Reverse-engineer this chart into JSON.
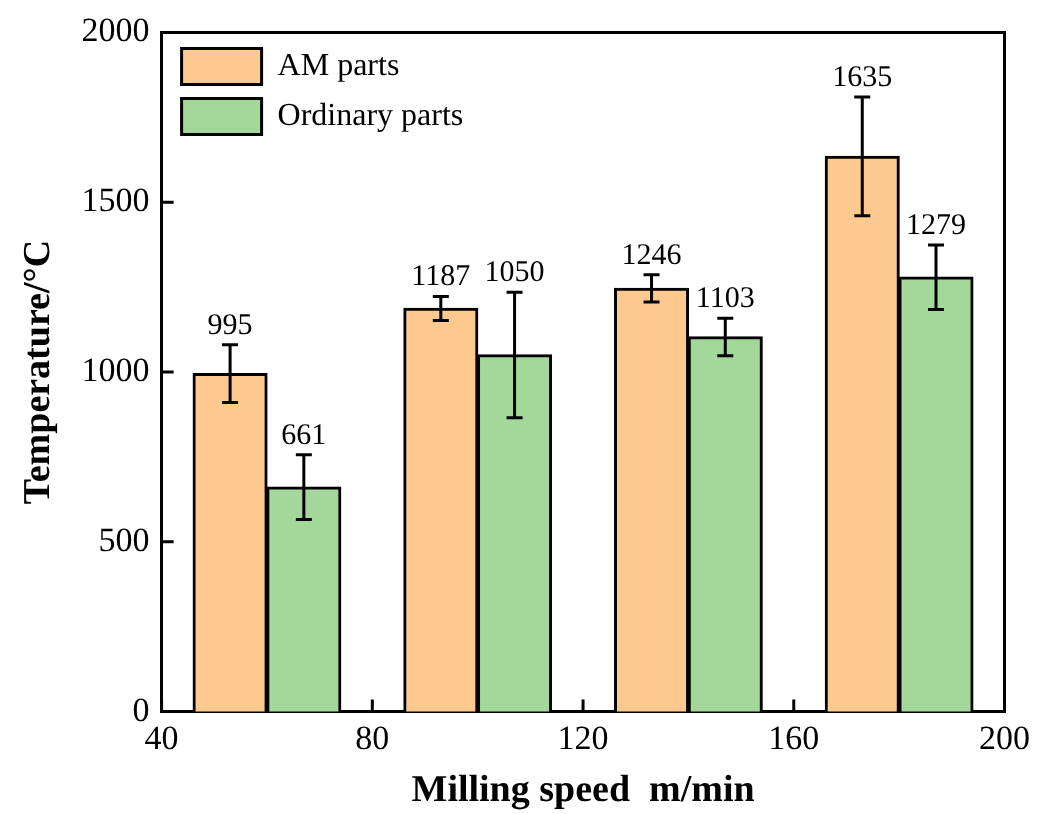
{
  "chart_data": {
    "type": "bar",
    "xlabel": "Milling speed  m/min",
    "ylabel": "Temperature/°C",
    "xlim": [
      40,
      200
    ],
    "xticks": [
      40,
      80,
      120,
      160,
      200
    ],
    "ylim": [
      0,
      2000
    ],
    "yticks": [
      0,
      500,
      1000,
      1500,
      2000
    ],
    "series": [
      {
        "name": "AM parts",
        "color": "#fdc98f",
        "x": [
          53,
          93,
          133,
          173
        ],
        "values": [
          995,
          1187,
          1246,
          1635
        ],
        "errors": [
          85,
          35,
          40,
          175
        ]
      },
      {
        "name": "Ordinary parts",
        "color": "#a3d89a",
        "x": [
          67,
          107,
          147,
          187
        ],
        "values": [
          661,
          1050,
          1103,
          1279
        ],
        "errors": [
          95,
          185,
          55,
          95
        ]
      }
    ],
    "data_labels": true,
    "grid": false,
    "legend": "top left"
  }
}
